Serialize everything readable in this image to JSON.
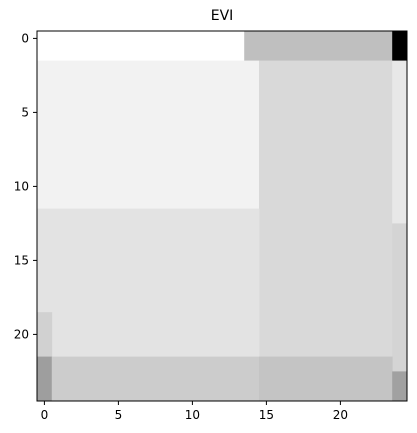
{
  "chart_data": {
    "type": "heatmap",
    "title": "EVI",
    "xlabel": "",
    "ylabel": "",
    "colormap": "gray",
    "x_extent": [
      -0.5,
      24.5
    ],
    "y_extent": [
      -0.5,
      24.5
    ],
    "y_inverted": true,
    "x_ticks": [
      0,
      5,
      10,
      15,
      20
    ],
    "y_ticks": [
      0,
      5,
      10,
      15,
      20
    ],
    "grid": false,
    "legend": "none",
    "regions": [
      {
        "rows": [
          0,
          1
        ],
        "cols": [
          0,
          13
        ],
        "value": 1.0
      },
      {
        "rows": [
          0,
          1
        ],
        "cols": [
          14,
          23
        ],
        "value": 0.75
      },
      {
        "rows": [
          0,
          1
        ],
        "cols": [
          24,
          24
        ],
        "value": 0.0
      },
      {
        "rows": [
          2,
          11
        ],
        "cols": [
          0,
          14
        ],
        "value": 0.95
      },
      {
        "rows": [
          2,
          24
        ],
        "cols": [
          15,
          23
        ],
        "value": 0.85
      },
      {
        "rows": [
          2,
          12
        ],
        "cols": [
          24,
          24
        ],
        "value": 0.91
      },
      {
        "rows": [
          12,
          21
        ],
        "cols": [
          0,
          14
        ],
        "value": 0.89
      },
      {
        "rows": [
          13,
          22
        ],
        "cols": [
          24,
          24
        ],
        "value": 0.83
      },
      {
        "rows": [
          19,
          21
        ],
        "cols": [
          0,
          0
        ],
        "value": 0.82
      },
      {
        "rows": [
          22,
          24
        ],
        "cols": [
          0,
          0
        ],
        "value": 0.62
      },
      {
        "rows": [
          22,
          24
        ],
        "cols": [
          1,
          14
        ],
        "value": 0.8
      },
      {
        "rows": [
          22,
          24
        ],
        "cols": [
          15,
          23
        ],
        "value": 0.77
      },
      {
        "rows": [
          23,
          24
        ],
        "cols": [
          24,
          24
        ],
        "value": 0.63
      }
    ]
  }
}
